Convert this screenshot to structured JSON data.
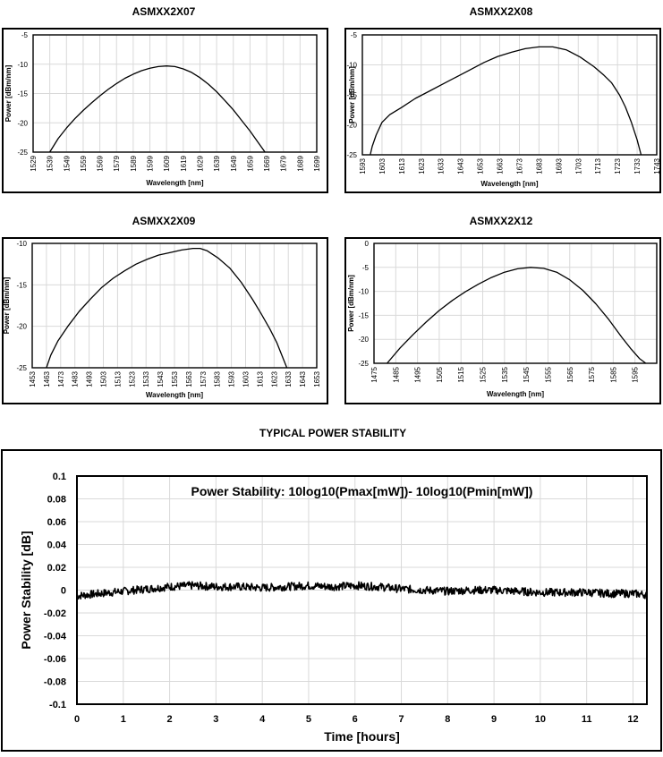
{
  "chart_data": [
    {
      "type": "line",
      "title": "ASMXX2X07",
      "xlabel": "Wavelength [nm]",
      "ylabel": "Power [dBm/nm]",
      "xlim": [
        1529,
        1699
      ],
      "ylim": [
        -25,
        -5
      ],
      "xticks": [
        1529,
        1539,
        1549,
        1559,
        1569,
        1579,
        1589,
        1599,
        1609,
        1619,
        1629,
        1639,
        1649,
        1659,
        1669,
        1679,
        1689,
        1699
      ],
      "yticks": [
        -5,
        -10,
        -15,
        -20,
        -25
      ],
      "grid": true,
      "series": [
        {
          "x": [
            1539,
            1544,
            1549,
            1554,
            1559,
            1564,
            1569,
            1574,
            1579,
            1584,
            1589,
            1594,
            1599,
            1604,
            1609,
            1614,
            1619,
            1624,
            1629,
            1634,
            1639,
            1644,
            1649,
            1654,
            1659,
            1664,
            1668
          ],
          "values": [
            -25,
            -22.7,
            -20.9,
            -19.3,
            -17.9,
            -16.6,
            -15.4,
            -14.3,
            -13.3,
            -12.4,
            -11.7,
            -11.1,
            -10.7,
            -10.4,
            -10.3,
            -10.4,
            -10.8,
            -11.4,
            -12.3,
            -13.4,
            -14.7,
            -16.2,
            -17.8,
            -19.6,
            -21.4,
            -23.4,
            -25
          ]
        }
      ]
    },
    {
      "type": "line",
      "title": "ASMXX2X08",
      "xlabel": "Wavelength [nm]",
      "ylabel": "Power [dBm/nm]",
      "xlim": [
        1593,
        1743
      ],
      "ylim": [
        -25,
        -5
      ],
      "xticks": [
        1593,
        1603,
        1613,
        1623,
        1633,
        1643,
        1653,
        1663,
        1673,
        1683,
        1693,
        1703,
        1713,
        1723,
        1733,
        1743
      ],
      "yticks": [
        -5,
        -10,
        -15,
        -20,
        -25
      ],
      "grid": true,
      "series": [
        {
          "x": [
            1597,
            1598,
            1600,
            1603,
            1607,
            1613,
            1620,
            1627,
            1634,
            1641,
            1648,
            1655,
            1662,
            1669,
            1676,
            1683,
            1690,
            1697,
            1704,
            1711,
            1716,
            1720,
            1724,
            1727,
            1730,
            1733,
            1735
          ],
          "values": [
            -25,
            -23.6,
            -21.7,
            -19.6,
            -18.3,
            -17.1,
            -15.6,
            -14.4,
            -13.2,
            -12.0,
            -10.8,
            -9.6,
            -8.6,
            -7.9,
            -7.3,
            -7.0,
            -7.0,
            -7.5,
            -8.7,
            -10.3,
            -11.7,
            -13.0,
            -15.0,
            -17.0,
            -19.5,
            -22.5,
            -25
          ]
        }
      ]
    },
    {
      "type": "line",
      "title": "ASMXX2X09",
      "xlabel": "Wavelength [nm]",
      "ylabel": "Power [dBm/nm]",
      "xlim": [
        1453,
        1653
      ],
      "ylim": [
        -25,
        -10
      ],
      "xticks": [
        1453,
        1463,
        1473,
        1483,
        1493,
        1503,
        1513,
        1523,
        1533,
        1543,
        1553,
        1563,
        1573,
        1583,
        1593,
        1603,
        1613,
        1623,
        1633,
        1643,
        1653
      ],
      "yticks": [
        -10,
        -15,
        -20,
        -25
      ],
      "grid": true,
      "series": [
        {
          "x": [
            1463,
            1466,
            1471,
            1478,
            1486,
            1494,
            1502,
            1510,
            1518,
            1526,
            1534,
            1542,
            1550,
            1558,
            1566,
            1571,
            1576,
            1584,
            1592,
            1600,
            1608,
            1614,
            1620,
            1625,
            1629,
            1632
          ],
          "values": [
            -25,
            -23.5,
            -21.8,
            -20.0,
            -18.2,
            -16.7,
            -15.3,
            -14.2,
            -13.3,
            -12.5,
            -11.9,
            -11.4,
            -11.1,
            -10.8,
            -10.6,
            -10.6,
            -10.9,
            -11.8,
            -13.0,
            -14.7,
            -16.8,
            -18.5,
            -20.3,
            -22.0,
            -23.7,
            -25
          ]
        }
      ]
    },
    {
      "type": "line",
      "title": "ASMXX2X12",
      "xlabel": "Wavelength [nm]",
      "ylabel": "Power [dBm/nm]",
      "xlim": [
        1475,
        1605
      ],
      "ylim": [
        -25,
        0
      ],
      "xticks": [
        1475,
        1485,
        1495,
        1505,
        1515,
        1525,
        1535,
        1545,
        1555,
        1565,
        1575,
        1585,
        1595
      ],
      "yticks": [
        0,
        -5,
        -10,
        -15,
        -20,
        -25
      ],
      "grid": true,
      "series": [
        {
          "x": [
            1481,
            1487,
            1493,
            1499,
            1505,
            1511,
            1517,
            1523,
            1529,
            1535,
            1541,
            1547,
            1553,
            1559,
            1565,
            1571,
            1577,
            1583,
            1589,
            1593,
            1597,
            1600
          ],
          "values": [
            -25,
            -21.8,
            -19.0,
            -16.4,
            -14.0,
            -11.9,
            -10.1,
            -8.5,
            -7.1,
            -6.0,
            -5.3,
            -5.0,
            -5.2,
            -6.0,
            -7.6,
            -9.8,
            -12.6,
            -15.9,
            -19.6,
            -21.9,
            -24.0,
            -25
          ]
        }
      ]
    },
    {
      "type": "line",
      "title": "TYPICAL POWER STABILITY",
      "annotation": "Power Stability: 10log10(Pmax[mW])- 10log10(Pmin[mW])",
      "xlabel": "Time [hours]",
      "ylabel": "Power Stability [dB]",
      "xlim": [
        0,
        12.3
      ],
      "ylim": [
        -0.1,
        0.1
      ],
      "xticks": [
        "0",
        "1",
        "2",
        "3",
        "4",
        "5",
        "6",
        "7",
        "8",
        "9",
        "10",
        "11",
        "12"
      ],
      "yticks": [
        "0.1",
        "0.08",
        "0.06",
        "0.04",
        "0.02",
        "0",
        "-0.02",
        "-0.04",
        "-0.06",
        "-0.08",
        "-0.1"
      ],
      "grid": true,
      "series": [
        {
          "x": [
            0,
            0.5,
            1,
            1.5,
            2,
            2.5,
            3,
            3.5,
            4,
            4.5,
            5,
            5.5,
            6,
            6.5,
            7,
            7.5,
            8,
            8.5,
            9,
            9.5,
            10,
            10.5,
            11,
            11.5,
            12,
            12.3
          ],
          "values": [
            -0.005,
            -0.003,
            -0.001,
            0.001,
            0.003,
            0.004,
            0.003,
            0.003,
            0.002,
            0.003,
            0.004,
            0.003,
            0.004,
            0.003,
            0.001,
            0.0,
            -0.001,
            0.0,
            0.0,
            -0.001,
            -0.002,
            -0.002,
            -0.002,
            -0.003,
            -0.003,
            -0.004
          ]
        }
      ]
    }
  ]
}
